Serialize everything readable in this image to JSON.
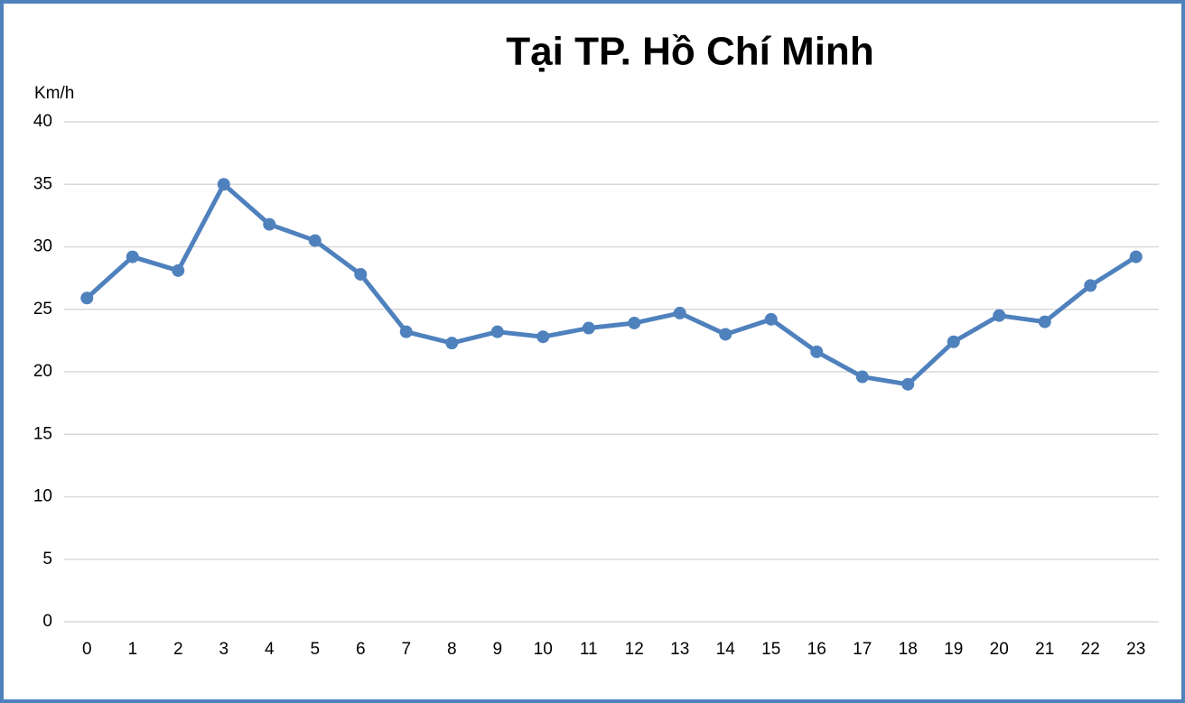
{
  "chart_data": {
    "type": "line",
    "title": "Tại TP. Hồ Chí Minh",
    "y_label": "Km/h",
    "categories": [
      "0",
      "1",
      "2",
      "3",
      "4",
      "5",
      "6",
      "7",
      "8",
      "9",
      "10",
      "11",
      "12",
      "13",
      "14",
      "15",
      "16",
      "17",
      "18",
      "19",
      "20",
      "21",
      "22",
      "23"
    ],
    "series": [
      {
        "color": "#4f81bd",
        "values": [
          25.9,
          29.2,
          28.1,
          35.0,
          31.8,
          30.5,
          27.8,
          23.2,
          22.3,
          23.2,
          22.8,
          23.5,
          23.9,
          24.7,
          23.0,
          24.2,
          21.6,
          19.6,
          19.0,
          22.4,
          24.5,
          24.0,
          26.9,
          29.2
        ]
      }
    ],
    "ylim": [
      0,
      40
    ],
    "yticks": [
      0,
      5,
      10,
      15,
      20,
      25,
      30,
      35,
      40
    ],
    "grid": true
  }
}
